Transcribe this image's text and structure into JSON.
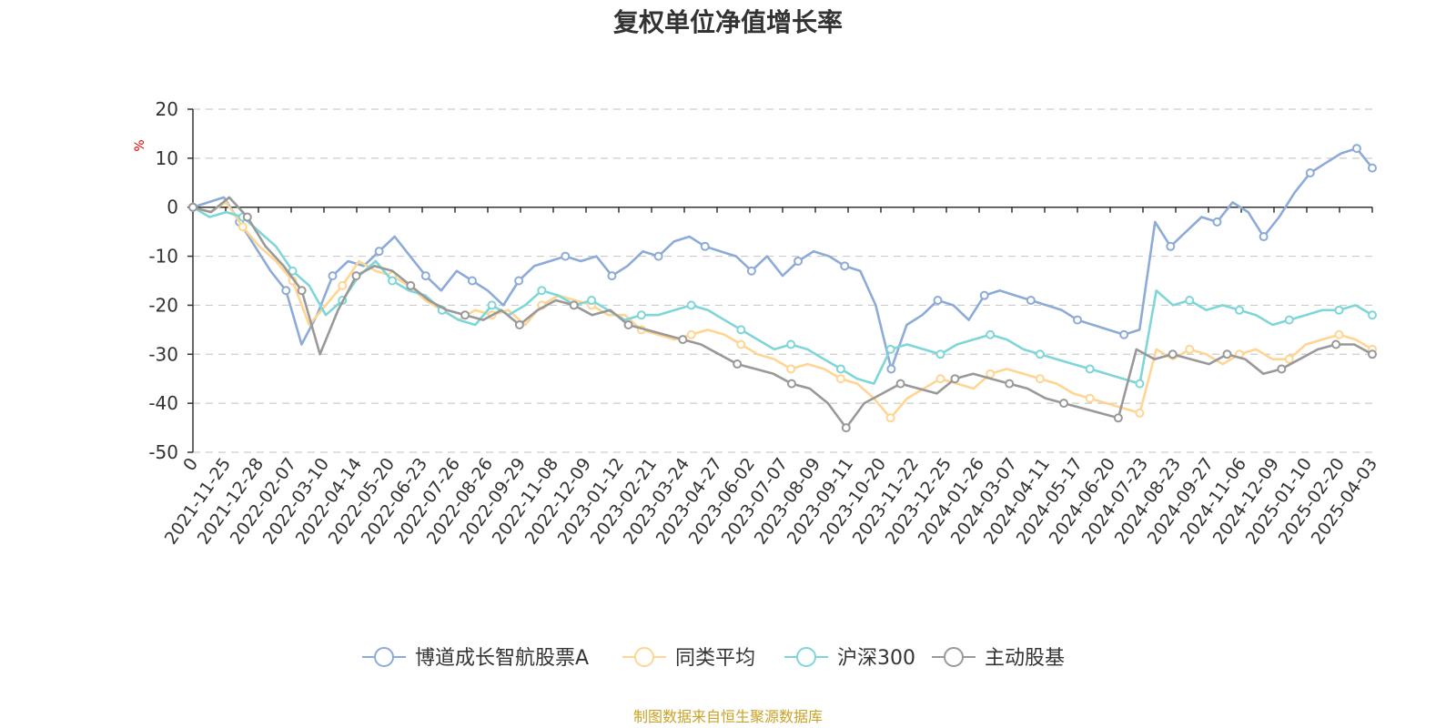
{
  "chart_data": {
    "type": "line",
    "title": "复权单位净值增长率",
    "ylabel": "%",
    "ylim": [
      -50,
      20
    ],
    "yticks": [
      20,
      10,
      0,
      -10,
      -20,
      -30,
      -40,
      -50
    ],
    "x_tick_labels": [
      "0",
      "2021-11-25",
      "2021-12-28",
      "2022-02-07",
      "2022-03-10",
      "2022-04-14",
      "2022-05-20",
      "2022-06-23",
      "2022-07-26",
      "2022-08-26",
      "2022-09-29",
      "2022-11-08",
      "2022-12-09",
      "2023-01-12",
      "2023-02-21",
      "2023-03-24",
      "2023-04-27",
      "2023-06-02",
      "2023-07-07",
      "2023-08-09",
      "2023-09-11",
      "2023-10-20",
      "2023-11-22",
      "2023-12-25",
      "2024-01-26",
      "2024-03-07",
      "2024-04-11",
      "2024-05-17",
      "2024-06-20",
      "2024-07-23",
      "2024-08-23",
      "2024-09-27",
      "2024-11-06",
      "2024-12-09",
      "2025-01-10",
      "2025-02-20",
      "2025-04-03"
    ],
    "grid": true,
    "legend_position": "bottom",
    "series": [
      {
        "name": "博道成长智航股票A",
        "color": "#8dabd8",
        "values": [
          0,
          1,
          2,
          -3,
          -8,
          -13,
          -17,
          -28,
          -22,
          -14,
          -11,
          -12,
          -9,
          -6,
          -10,
          -14,
          -17,
          -13,
          -15,
          -17,
          -20,
          -15,
          -12,
          -11,
          -10,
          -11,
          -10,
          -14,
          -12,
          -9,
          -10,
          -7,
          -6,
          -8,
          -9,
          -10,
          -13,
          -10,
          -14,
          -11,
          -9,
          -10,
          -12,
          -13,
          -20,
          -33,
          -24,
          -22,
          -19,
          -20,
          -23,
          -18,
          -17,
          -18,
          -19,
          -20,
          -21,
          -23,
          -24,
          -25,
          -26,
          -25,
          -3,
          -8,
          -5,
          -2,
          -3,
          1,
          -1,
          -6,
          -2,
          3,
          7,
          9,
          11,
          12,
          8
        ]
      },
      {
        "name": "同类平均",
        "color": "#ffd591",
        "values": [
          0,
          -1,
          1,
          -4,
          -8,
          -11,
          -15,
          -24,
          -20,
          -16,
          -11,
          -13,
          -14,
          -16,
          -19,
          -21,
          -23,
          -21,
          -22,
          -21,
          -24,
          -20,
          -18,
          -19,
          -20,
          -22,
          -22,
          -25,
          -26,
          -27,
          -26,
          -25,
          -26,
          -28,
          -30,
          -31,
          -33,
          -32,
          -33,
          -35,
          -36,
          -39,
          -43,
          -39,
          -37,
          -35,
          -36,
          -37,
          -34,
          -33,
          -34,
          -35,
          -36,
          -38,
          -39,
          -40,
          -41,
          -42,
          -29,
          -31,
          -29,
          -30,
          -32,
          -30,
          -29,
          -31,
          -31,
          -28,
          -27,
          -26,
          -27,
          -29
        ]
      },
      {
        "name": "沪深300",
        "color": "#7fd6d9",
        "values": [
          0,
          -2,
          -1,
          -2,
          -5,
          -8,
          -13,
          -16,
          -22,
          -19,
          -14,
          -11,
          -15,
          -17,
          -18,
          -21,
          -23,
          -24,
          -20,
          -22,
          -20,
          -17,
          -18,
          -20,
          -19,
          -21,
          -23,
          -22,
          -22,
          -21,
          -20,
          -21,
          -23,
          -25,
          -27,
          -29,
          -28,
          -29,
          -31,
          -33,
          -35,
          -36,
          -29,
          -28,
          -29,
          -30,
          -28,
          -27,
          -26,
          -27,
          -29,
          -30,
          -31,
          -32,
          -33,
          -34,
          -35,
          -36,
          -17,
          -20,
          -19,
          -21,
          -20,
          -21,
          -22,
          -24,
          -23,
          -22,
          -21,
          -21,
          -20,
          -22
        ]
      },
      {
        "name": "主动股基",
        "color": "#999999",
        "values": [
          0,
          -1,
          2,
          -2,
          -8,
          -12,
          -17,
          -30,
          -21,
          -14,
          -12,
          -13,
          -16,
          -19,
          -21,
          -22,
          -23,
          -21,
          -24,
          -21,
          -19,
          -20,
          -22,
          -21,
          -24,
          -25,
          -26,
          -27,
          -28,
          -30,
          -32,
          -33,
          -34,
          -36,
          -37,
          -40,
          -45,
          -40,
          -38,
          -36,
          -37,
          -38,
          -35,
          -34,
          -35,
          -36,
          -37,
          -39,
          -40,
          -41,
          -42,
          -43,
          -29,
          -31,
          -30,
          -31,
          -32,
          -30,
          -31,
          -34,
          -33,
          -31,
          -29,
          -28,
          -28,
          -30
        ]
      }
    ]
  },
  "source_text": "制图数据来自恒生聚源数据库"
}
